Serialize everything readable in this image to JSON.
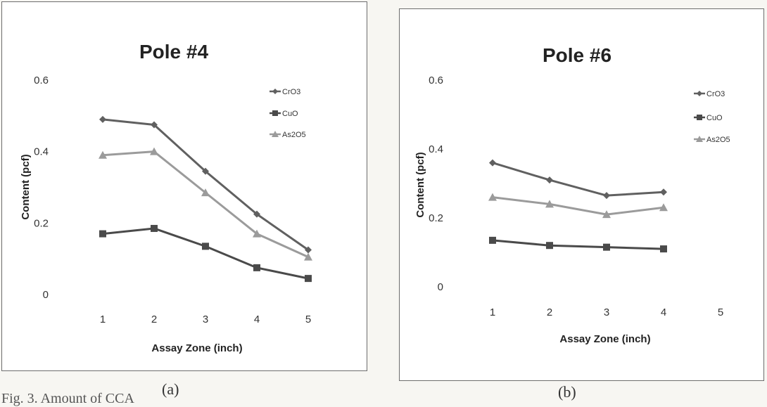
{
  "chart_data": [
    {
      "type": "line",
      "title": "Pole #4",
      "xlabel": "Assay Zone (inch)",
      "ylabel": "Content (pcf)",
      "categories": [
        "1",
        "2",
        "3",
        "4",
        "5"
      ],
      "ylim": [
        0,
        0.6
      ],
      "yticks": [
        "0",
        "0.2",
        "0.4",
        "0.6"
      ],
      "grid": false,
      "legend": "top-right",
      "series": [
        {
          "name": "CrO3",
          "color": "#606060",
          "marker": "diamond",
          "values": [
            0.49,
            0.475,
            0.345,
            0.225,
            0.125
          ]
        },
        {
          "name": "CuO",
          "color": "#4a4a4a",
          "marker": "square",
          "values": [
            0.17,
            0.185,
            0.135,
            0.075,
            0.045
          ]
        },
        {
          "name": "As2O5",
          "color": "#9b9b9b",
          "marker": "triangle",
          "values": [
            0.39,
            0.4,
            0.285,
            0.17,
            0.105
          ]
        }
      ],
      "panel_label": "(a)"
    },
    {
      "type": "line",
      "title": "Pole #6",
      "xlabel": "Assay Zone (inch)",
      "ylabel": "Content (pcf)",
      "categories": [
        "1",
        "2",
        "3",
        "4",
        "5"
      ],
      "ylim": [
        0,
        0.6
      ],
      "yticks": [
        "0",
        "0.2",
        "0.4",
        "0.6"
      ],
      "grid": false,
      "legend": "top-right",
      "series": [
        {
          "name": "CrO3",
          "color": "#606060",
          "marker": "diamond",
          "values": [
            0.36,
            0.31,
            0.265,
            0.275,
            null
          ]
        },
        {
          "name": "CuO",
          "color": "#4a4a4a",
          "marker": "square",
          "values": [
            0.135,
            0.12,
            0.115,
            0.11,
            null
          ]
        },
        {
          "name": "As2O5",
          "color": "#9b9b9b",
          "marker": "triangle",
          "values": [
            0.26,
            0.24,
            0.21,
            0.23,
            null
          ]
        }
      ],
      "panel_label": "(b)"
    }
  ],
  "caption": "Fig. 3. Amount of CCA"
}
